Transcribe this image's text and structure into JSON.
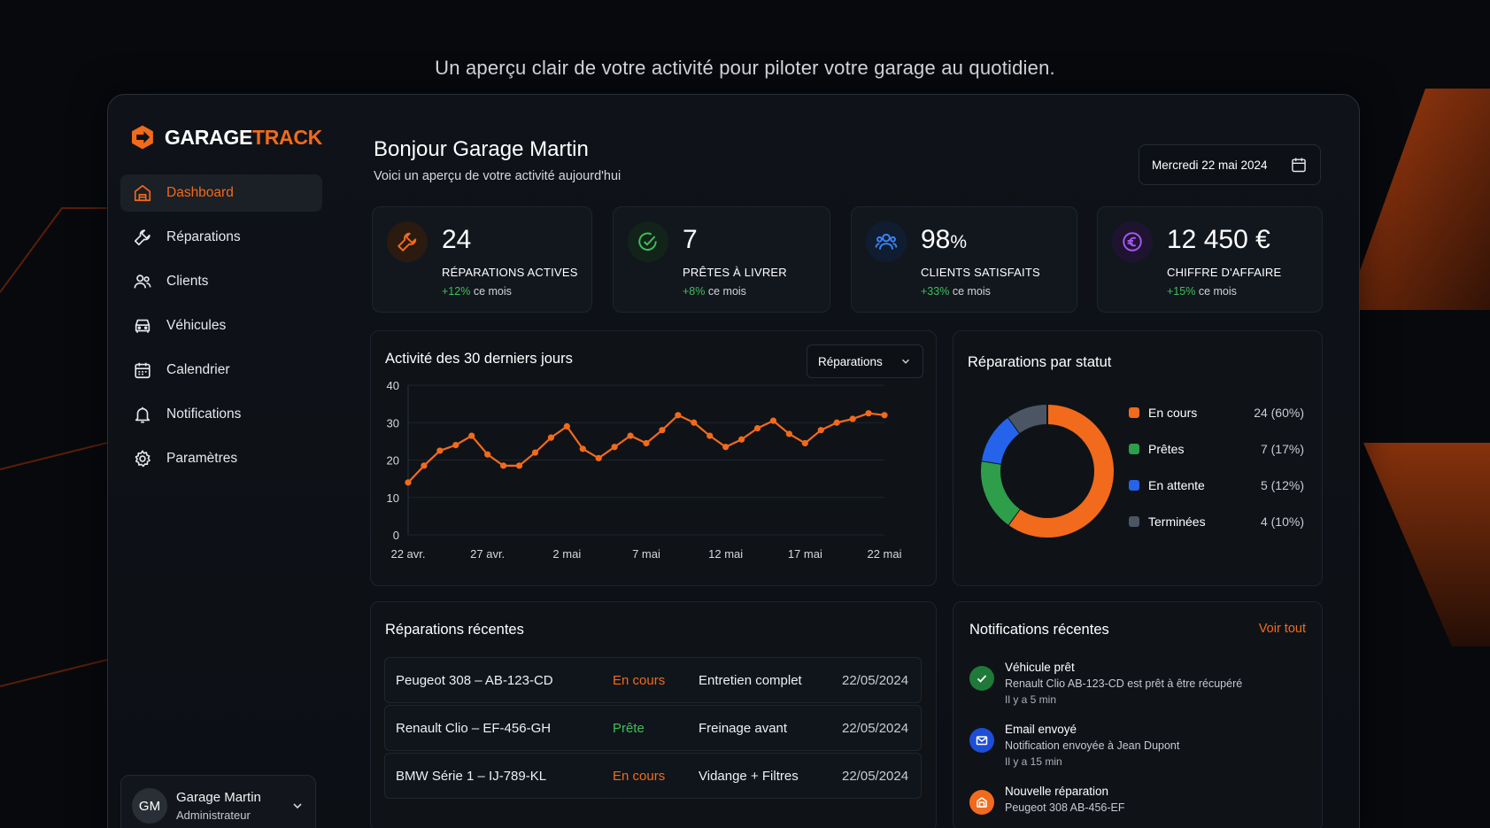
{
  "tagline": "Un aperçu clair de votre activité pour piloter votre garage au quotidien.",
  "brand": {
    "part1": "GARAGE",
    "part2": "TRACK",
    "accent": "#f26a1b"
  },
  "sidebar": {
    "items": [
      {
        "label": "Dashboard",
        "icon": "home-icon",
        "active": true
      },
      {
        "label": "Réparations",
        "icon": "wrench-icon"
      },
      {
        "label": "Clients",
        "icon": "users-icon"
      },
      {
        "label": "Véhicules",
        "icon": "car-icon"
      },
      {
        "label": "Calendrier",
        "icon": "calendar-icon"
      },
      {
        "label": "Notifications",
        "icon": "bell-icon"
      },
      {
        "label": "Paramètres",
        "icon": "gear-icon"
      }
    ],
    "user": {
      "initials": "GM",
      "name": "Garage Martin",
      "role": "Administrateur"
    }
  },
  "header": {
    "title": "Bonjour Garage Martin",
    "subtitle": "Voici un aperçu de votre activité aujourd'hui",
    "date": "Mercredi 22 mai 2024"
  },
  "kpis": [
    {
      "value": "24",
      "unit": "",
      "label": "RÉPARATIONS ACTIVES",
      "delta": "+12%",
      "delta_suffix": "ce mois",
      "icon": "wrench-icon",
      "color": "#f26a1b"
    },
    {
      "value": "7",
      "unit": "",
      "label": "PRÊTES À LIVRER",
      "delta": "+8%",
      "delta_suffix": "ce mois",
      "icon": "check-circle-icon",
      "color": "#3fbf5a"
    },
    {
      "value": "98",
      "unit": "%",
      "label": "CLIENTS SATISFAITS",
      "delta": "+33%",
      "delta_suffix": "ce mois",
      "icon": "users-icon",
      "color": "#3b82f6"
    },
    {
      "value": "12 450 €",
      "unit": "",
      "label": "CHIFFRE D'AFFAIRE",
      "delta": "+15%",
      "delta_suffix": "ce mois",
      "icon": "euro-icon",
      "color": "#a855f7"
    }
  ],
  "activity": {
    "title": "Activité des 30 derniers jours",
    "select_value": "Réparations"
  },
  "status": {
    "title": "Réparations par statut",
    "items": [
      {
        "name": "En cours",
        "value": "24 (60%)",
        "color": "#f26a1b"
      },
      {
        "name": "Prêtes",
        "value": "7 (17%)",
        "color": "#2e9e4a"
      },
      {
        "name": "En attente",
        "value": "5 (12%)",
        "color": "#2563eb"
      },
      {
        "name": "Terminées",
        "value": "4 (10%)",
        "color": "#4b5563"
      }
    ]
  },
  "recent_repairs": {
    "title": "Réparations récentes",
    "rows": [
      {
        "vehicle": "Peugeot 308 – AB-123-CD",
        "status": "En cours",
        "status_kind": "orange",
        "work": "Entretien complet",
        "date": "22/05/2024"
      },
      {
        "vehicle": "Renault Clio – EF-456-GH",
        "status": "Prête",
        "status_kind": "green",
        "work": "Freinage avant",
        "date": "22/05/2024"
      },
      {
        "vehicle": "BMW Série 1 – IJ-789-KL",
        "status": "En cours",
        "status_kind": "orange",
        "work": "Vidange + Filtres",
        "date": "22/05/2024"
      }
    ]
  },
  "notifications": {
    "title": "Notifications récentes",
    "see_all": "Voir tout",
    "items": [
      {
        "title": "Véhicule prêt",
        "desc": "Renault Clio AB-123-CD est prêt à être récupéré",
        "time": "Il y a 5 min",
        "icon": "check-icon",
        "color": "#2e9e4a"
      },
      {
        "title": "Email envoyé",
        "desc": "Notification envoyée à Jean Dupont",
        "time": "Il y a 15 min",
        "icon": "mail-icon",
        "color": "#2563eb"
      },
      {
        "title": "Nouvelle réparation",
        "desc": "Peugeot 308 AB-456-EF",
        "time": "",
        "icon": "garage-icon",
        "color": "#f26a1b"
      }
    ]
  },
  "chart_data": {
    "type": "line",
    "title": "Activité des 30 derniers jours",
    "x_tick_labels": [
      "22 avr.",
      "27 avr.",
      "2 mai",
      "7 mai",
      "12 mai",
      "17 mai",
      "22 mai"
    ],
    "x_ticks": [
      0,
      5,
      10,
      15,
      20,
      25,
      30
    ],
    "y_ticks": [
      0,
      10,
      20,
      30,
      40
    ],
    "ylim": [
      0,
      40
    ],
    "xlim": [
      0,
      30
    ],
    "grid": true,
    "series": [
      {
        "color": "#f26a1b",
        "x": [
          0,
          1,
          2,
          3,
          4,
          5,
          6,
          7,
          8,
          9,
          10,
          11,
          12,
          13,
          14,
          15,
          16,
          17,
          18,
          19,
          20,
          21,
          22,
          23,
          24,
          25,
          26,
          27,
          28,
          29,
          30
        ],
        "values": [
          14,
          18.5,
          22.5,
          24,
          26.5,
          21.5,
          18.5,
          18.5,
          22,
          26,
          29,
          23,
          20.5,
          23.5,
          26.5,
          24.5,
          28,
          32,
          30,
          26.5,
          23.5,
          25.5,
          28.5,
          30.5,
          27,
          24.5,
          28,
          30,
          31,
          32.5,
          32
        ]
      }
    ]
  }
}
